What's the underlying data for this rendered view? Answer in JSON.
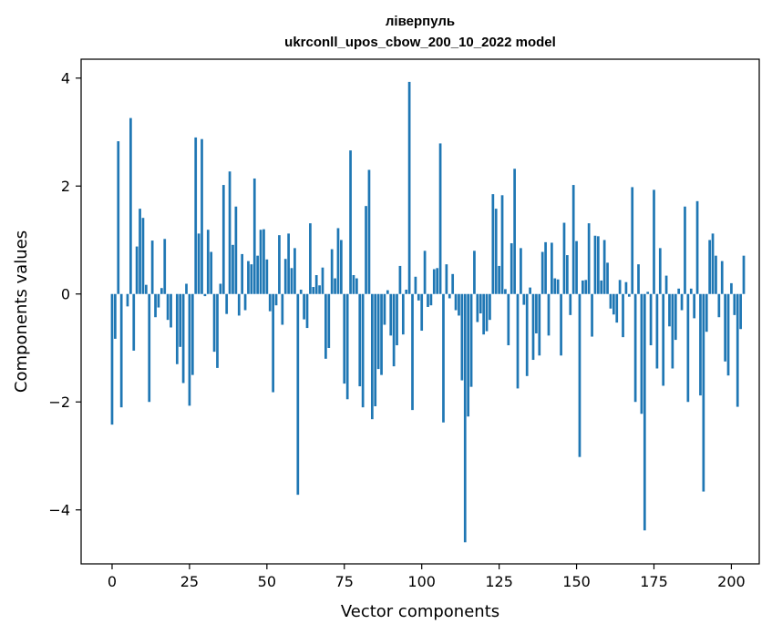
{
  "chart_data": {
    "type": "bar",
    "title": "ліверпуль",
    "subtitle": "ukrconll_upos_cbow_200_10_2022 model",
    "xlabel": "Vector components",
    "ylabel": "Components values",
    "xlim": [
      -10,
      209
    ],
    "ylim": [
      -5.0,
      4.35
    ],
    "xticks": [
      0,
      25,
      50,
      75,
      100,
      125,
      150,
      175,
      200
    ],
    "xtick_labels": [
      "0",
      "25",
      "50",
      "75",
      "100",
      "125",
      "150",
      "175",
      "200"
    ],
    "yticks": [
      -4,
      -2,
      0,
      2,
      4
    ],
    "ytick_labels": [
      "−4",
      "−2",
      "0",
      "2",
      "4"
    ],
    "bar_color": "#1f77b4",
    "grid": false,
    "values": [
      -2.42,
      -0.83,
      2.83,
      -2.1,
      0,
      -0.23,
      3.26,
      -1.05,
      0.88,
      1.58,
      1.41,
      0.17,
      -2.0,
      0.99,
      -0.43,
      -0.25,
      0.11,
      1.02,
      -0.48,
      -0.62,
      0,
      -1.3,
      -0.98,
      -1.65,
      0.19,
      -2.07,
      -1.5,
      2.9,
      1.12,
      2.87,
      -0.04,
      1.19,
      0.78,
      -1.07,
      -1.37,
      0.19,
      2.02,
      -0.37,
      2.27,
      0.91,
      1.62,
      -0.4,
      0.74,
      -0.3,
      0.61,
      0.55,
      2.14,
      0.71,
      1.19,
      1.2,
      0.64,
      -0.32,
      -1.82,
      -0.21,
      1.09,
      -0.57,
      0.65,
      1.12,
      0.48,
      0.85,
      -3.72,
      0.08,
      -0.47,
      -0.63,
      1.31,
      0.13,
      0.35,
      0.16,
      0.49,
      -1.2,
      -1.0,
      0.83,
      0.29,
      1.22,
      1.0,
      -1.66,
      -1.95,
      2.66,
      0.35,
      0.29,
      -1.71,
      -2.1,
      1.63,
      2.3,
      -2.32,
      -2.08,
      -1.39,
      -1.5,
      -0.57,
      0.07,
      -0.77,
      -1.34,
      -0.95,
      0.52,
      -0.75,
      0.08,
      3.93,
      -2.15,
      0.32,
      -0.12,
      -0.68,
      0.8,
      -0.24,
      -0.21,
      0.46,
      0.48,
      2.79,
      -2.38,
      0.55,
      -0.08,
      0.37,
      -0.3,
      -0.4,
      -1.6,
      -4.6,
      -2.27,
      -1.72,
      0.8,
      -0.52,
      -0.36,
      -0.75,
      -0.69,
      -0.48,
      1.85,
      1.58,
      0.52,
      1.83,
      0.09,
      -0.95,
      0.94,
      2.32,
      -1.75,
      0.85,
      -0.2,
      -1.52,
      0.12,
      -1.22,
      -0.73,
      -1.14,
      0.78,
      0.96,
      -0.77,
      0.95,
      0.29,
      0.27,
      -1.14,
      1.32,
      0.72,
      -0.39,
      2.02,
      0.98,
      -3.02,
      0.25,
      0.26,
      1.31,
      -0.79,
      1.08,
      1.07,
      0.25,
      1.0,
      0.58,
      -0.27,
      -0.38,
      -0.53,
      0.26,
      -0.8,
      0.22,
      -0.05,
      1.98,
      -2.0,
      0.55,
      -2.22,
      -4.38,
      0.04,
      -0.95,
      1.93,
      -1.38,
      0.85,
      -1.7,
      0.34,
      -0.6,
      -1.38,
      -0.85,
      0.1,
      -0.3,
      1.62,
      -2.0,
      0.1,
      -0.45,
      1.72,
      -1.88,
      -3.66,
      -0.7,
      1.0,
      1.12,
      0.71,
      -0.43,
      0.61,
      -1.25,
      -1.51,
      0.2,
      -0.39,
      -2.09,
      -0.65,
      0.71
    ]
  }
}
